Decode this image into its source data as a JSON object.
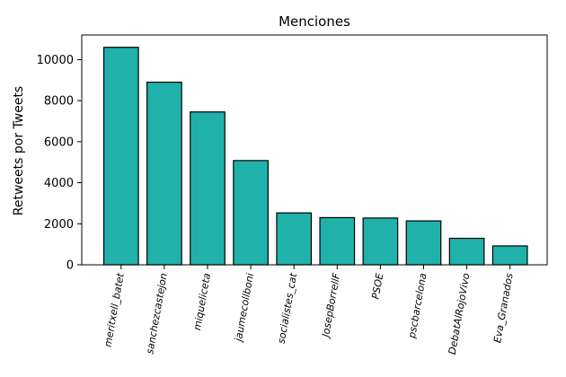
{
  "chart_data": {
    "type": "bar",
    "title": "Menciones",
    "xlabel": "",
    "ylabel": "Retweets por Tweets",
    "categories": [
      "meritxell_batet",
      "sanchezcastejon",
      "miqueliceta",
      "jaumecollboni",
      "socialistes_cat",
      "JosepBorrellF",
      "PSOE",
      "pscbarcelona",
      "DebatAlRojoVivo",
      "Eva_Granados"
    ],
    "values": [
      10600,
      8900,
      7450,
      5080,
      2530,
      2300,
      2280,
      2140,
      1290,
      920
    ],
    "ylim": [
      0,
      11200
    ],
    "yticks": [
      "0",
      "2000",
      "4000",
      "6000",
      "8000",
      "10000"
    ],
    "bar_color": "#20b2aa",
    "grid": false,
    "legend": "none"
  }
}
